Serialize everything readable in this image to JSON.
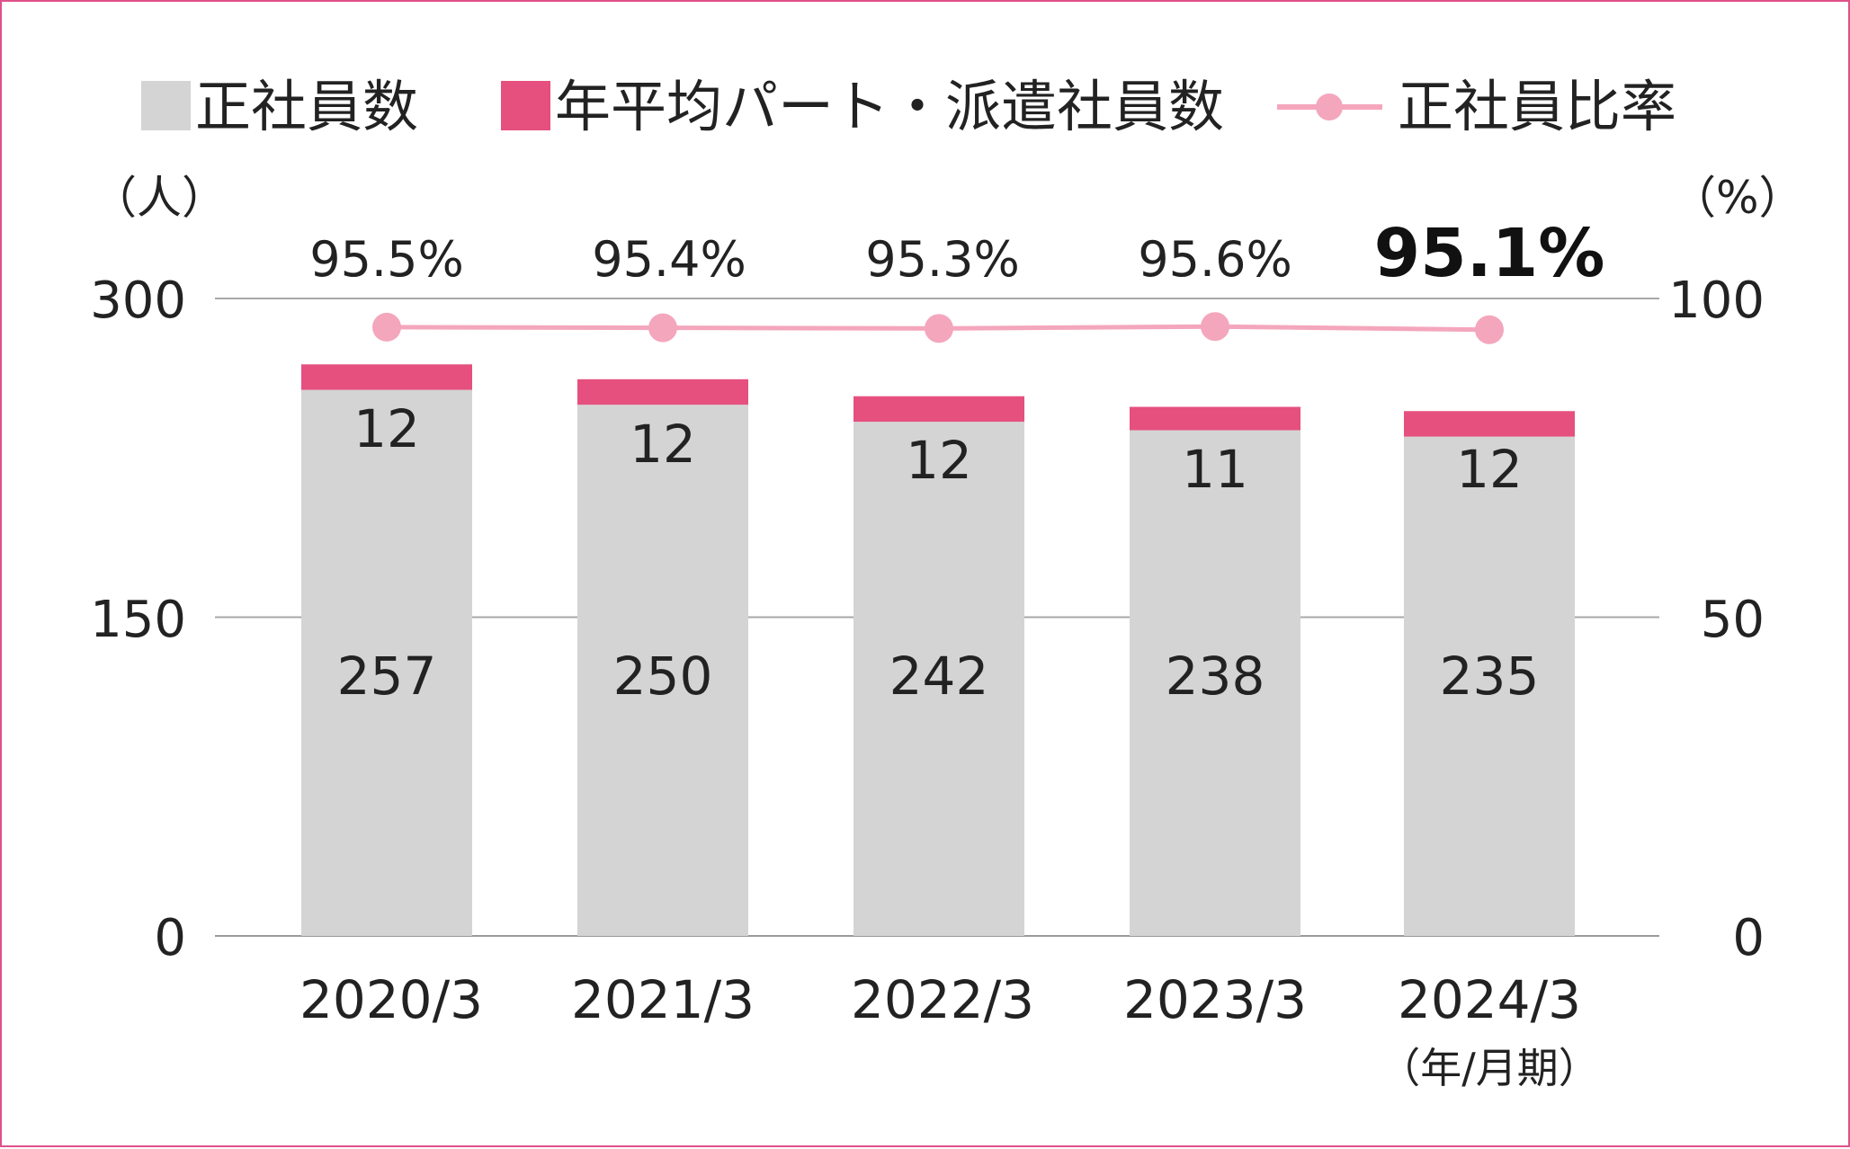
{
  "chart_data": {
    "type": "bar",
    "stacked": true,
    "categories": [
      "2020/3",
      "2021/3",
      "2022/3",
      "2023/3",
      "2024/3"
    ],
    "series": [
      {
        "name": "正社員数",
        "type": "bar",
        "axis": "left",
        "color": "#d4d4d4",
        "values": [
          257,
          250,
          242,
          238,
          235
        ]
      },
      {
        "name": "年平均パート・派遣社員数",
        "type": "bar",
        "axis": "left",
        "color": "#e5507f",
        "values": [
          12,
          12,
          12,
          11,
          12
        ]
      },
      {
        "name": "正社員比率",
        "type": "line",
        "axis": "right",
        "color": "#f4a6bd",
        "values": [
          95.5,
          95.4,
          95.3,
          95.6,
          95.1
        ]
      }
    ],
    "value_labels": {
      "bottom": [
        "257",
        "250",
        "242",
        "238",
        "235"
      ],
      "top": [
        "12",
        "12",
        "12",
        "11",
        "12"
      ],
      "ratio": [
        "95.5%",
        "95.4%",
        "95.3%",
        "95.6%",
        "95.1%"
      ]
    },
    "emphasized_index": 4,
    "y_left": {
      "unit": "（人）",
      "ticks": [
        0,
        150,
        300
      ],
      "tick_labels": [
        "0",
        "150",
        "300"
      ],
      "ylim": [
        0,
        300
      ]
    },
    "y_right": {
      "unit": "（%）",
      "ticks": [
        0,
        50,
        100
      ],
      "tick_labels": [
        "0",
        "50",
        "100"
      ],
      "ylim": [
        0,
        100
      ]
    },
    "x_period_note": "（年/月期）",
    "grid": true,
    "legend": "top"
  }
}
